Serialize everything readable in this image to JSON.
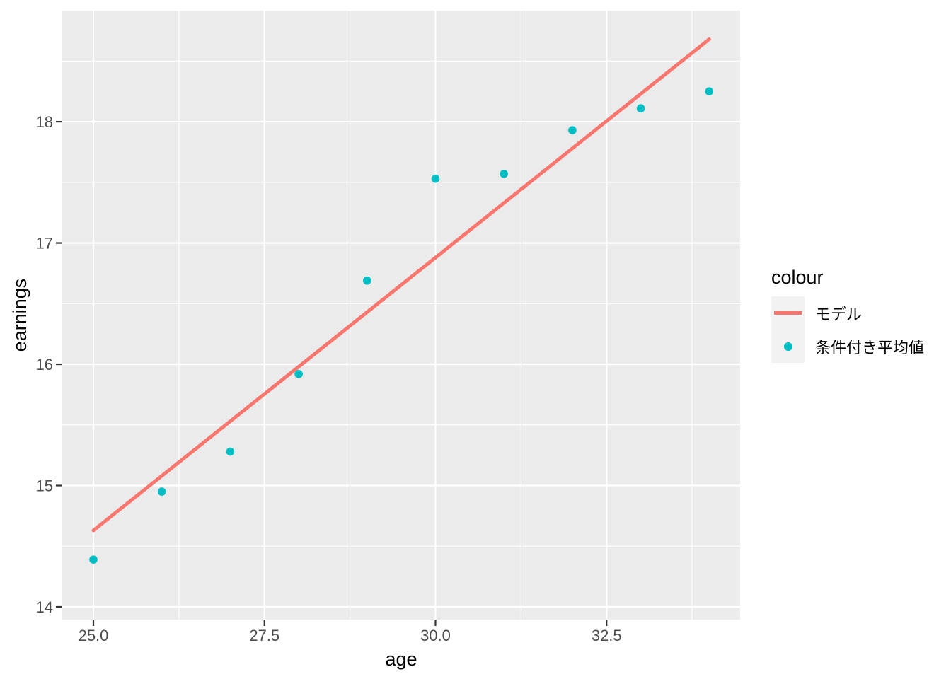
{
  "chart_data": {
    "type": "scatter",
    "title": "",
    "xlabel": "age",
    "ylabel": "earnings",
    "axes": {
      "x": {
        "range": [
          24.545,
          34.452
        ],
        "ticks": [
          {
            "v": 25.0,
            "label": "25.0"
          },
          {
            "v": 27.5,
            "label": "27.5"
          },
          {
            "v": 30.0,
            "label": "30.0"
          },
          {
            "v": 32.5,
            "label": "32.5"
          }
        ],
        "minor": [
          26.25,
          28.75,
          31.25,
          33.75
        ]
      },
      "y": {
        "range": [
          13.895,
          18.916
        ],
        "ticks": [
          {
            "v": 14,
            "label": "14"
          },
          {
            "v": 15,
            "label": "15"
          },
          {
            "v": 16,
            "label": "16"
          },
          {
            "v": 17,
            "label": "17"
          },
          {
            "v": 18,
            "label": "18"
          }
        ],
        "minor": [
          14.5,
          15.5,
          16.5,
          17.5,
          18.5
        ]
      }
    },
    "series": [
      {
        "name": "モデル",
        "type": "line",
        "color": "#F8766D",
        "x": [
          25,
          34
        ],
        "y": [
          14.63,
          18.68
        ]
      },
      {
        "name": "条件付き平均値",
        "type": "scatter",
        "color": "#00BFC4",
        "x": [
          25,
          26,
          27,
          28,
          29,
          30,
          31,
          32,
          33,
          34
        ],
        "y": [
          14.39,
          14.95,
          15.28,
          15.92,
          16.69,
          17.53,
          17.57,
          17.93,
          18.11,
          18.25
        ]
      }
    ],
    "legend": {
      "title": "colour",
      "position": "right",
      "entries": [
        {
          "label": "モデル",
          "type": "line",
          "color": "#F8766D"
        },
        {
          "label": "条件付き平均値",
          "type": "point",
          "color": "#00BFC4"
        }
      ]
    },
    "panel": {
      "bg": "#EBEBEB",
      "grid": "#FFFFFF",
      "tick_mark_color": "#333333",
      "tick_text_color": "#4D4D4D"
    },
    "grid": true
  }
}
